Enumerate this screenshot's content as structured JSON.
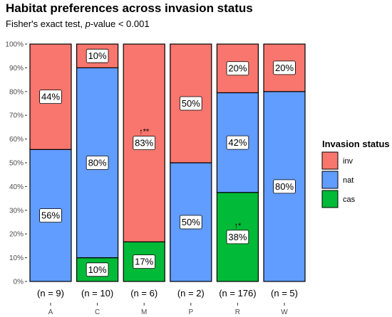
{
  "chart_data": {
    "type": "bar",
    "stacked": true,
    "title": "Habitat preferences across invasion status",
    "subtitle_prefix": "Fisher's exact test, ",
    "subtitle_pvalue": "p",
    "subtitle_suffix": "-value < 0.001",
    "categories": [
      "A",
      "C",
      "M",
      "P",
      "R",
      "W"
    ],
    "sample_sizes": [
      "(n = 9)",
      "(n = 10)",
      "(n = 6)",
      "(n = 2)",
      "(n = 176)",
      "(n = 5)"
    ],
    "series": [
      {
        "name": "inv",
        "color": "#F8766D",
        "values": [
          44.4,
          10,
          83.3,
          50,
          20.5,
          20
        ],
        "labels": [
          "44%",
          "10%",
          "83%",
          "50%",
          "20%",
          "20%"
        ]
      },
      {
        "name": "nat",
        "color": "#619CFF",
        "values": [
          55.6,
          80,
          0,
          50,
          42.0,
          80
        ],
        "labels": [
          "56%",
          "80%",
          "",
          "50%",
          "42%",
          "80%"
        ]
      },
      {
        "name": "cas",
        "color": "#00BA38",
        "values": [
          0,
          10,
          16.7,
          0,
          37.5,
          0
        ],
        "labels": [
          "",
          "10%",
          "17%",
          "",
          "38%",
          ""
        ]
      }
    ],
    "annotations": [
      {
        "category": "M",
        "series": "inv",
        "text": "↑**"
      },
      {
        "category": "R",
        "series": "cas",
        "text": "↑*"
      }
    ],
    "yticks": [
      "0%",
      "10%",
      "20%",
      "30%",
      "40%",
      "50%",
      "60%",
      "70%",
      "80%",
      "90%",
      "100%"
    ],
    "ylim": [
      0,
      100
    ],
    "legend": {
      "title": "Invasion status",
      "position": "right"
    },
    "grid": false
  }
}
